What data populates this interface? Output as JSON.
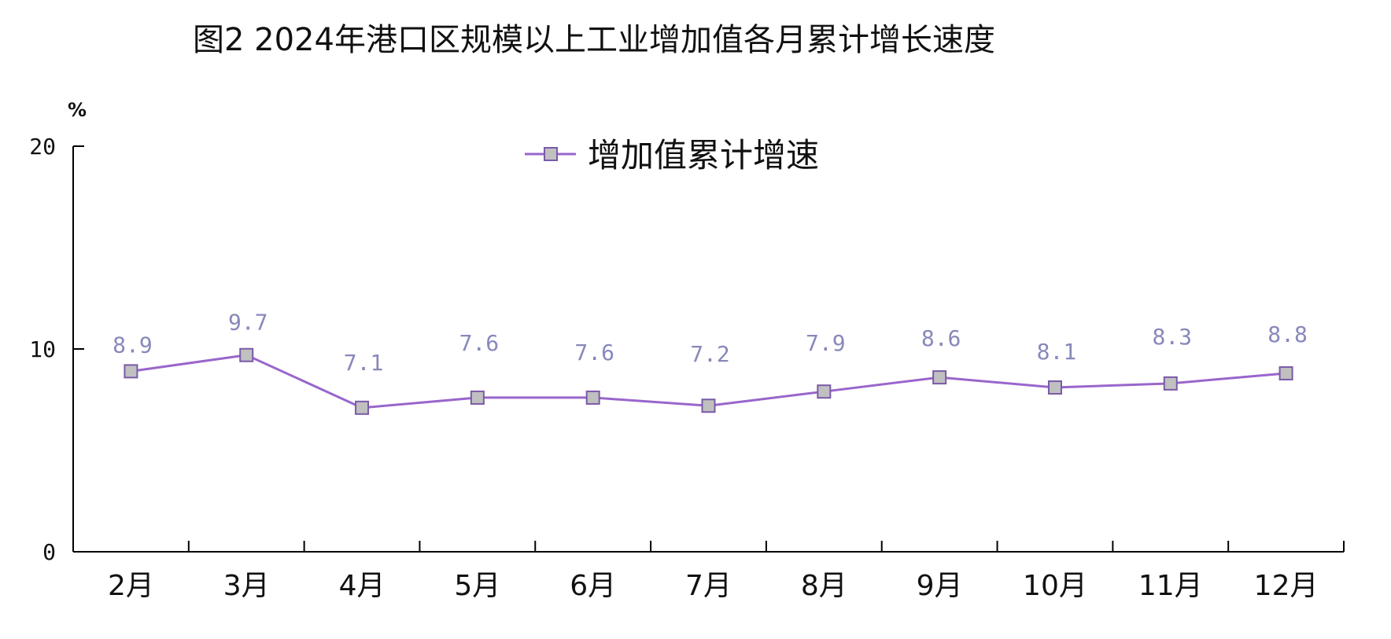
{
  "chart_data": {
    "type": "line",
    "title": "图2    2024年港口区规模以上工业增加值各月累计增长速度",
    "ylabel": "%",
    "xlabel": "",
    "ylim": [
      0,
      20
    ],
    "yticks": [
      0,
      10,
      20
    ],
    "categories": [
      "2月",
      "3月",
      "4月",
      "5月",
      "6月",
      "7月",
      "8月",
      "9月",
      "10月",
      "11月",
      "12月"
    ],
    "series": [
      {
        "name": "增加值累计增速",
        "values": [
          8.9,
          9.7,
          7.1,
          7.6,
          7.6,
          7.2,
          7.9,
          8.6,
          8.1,
          8.3,
          8.8
        ],
        "labels": [
          "8.9",
          "9.7",
          "7.1",
          "7.6",
          "7.6",
          "7.2",
          "7.9",
          "8.6",
          "8.1",
          "8.3",
          "8.8"
        ]
      }
    ],
    "legend_position": "top-center",
    "grid": false,
    "colors": {
      "line": "#9966cc",
      "marker_fill": "#c0c0c0",
      "marker_stroke": "#7a5aa8",
      "data_label": "#8888bb",
      "axis": "#000000"
    }
  }
}
